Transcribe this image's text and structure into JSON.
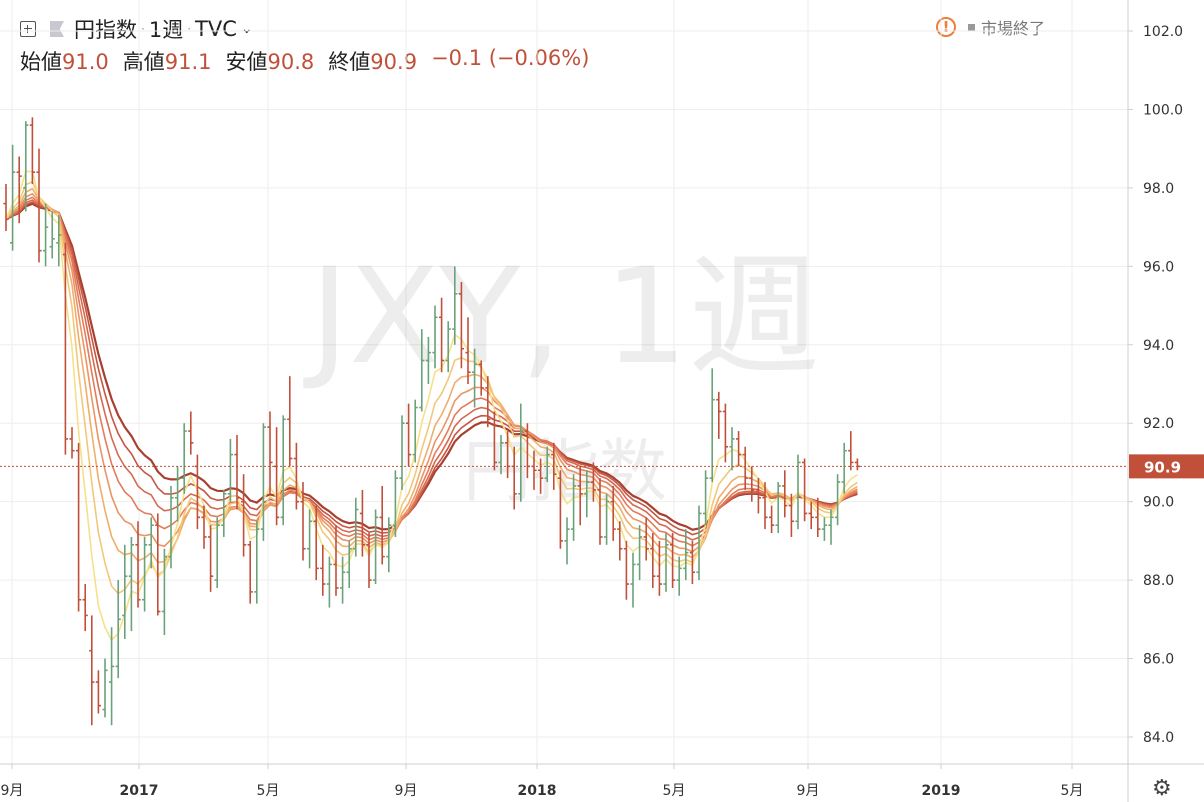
{
  "header": {
    "symbol_name": "円指数",
    "interval": "1週",
    "exchange": "TVC",
    "dot": "·",
    "ohlc": [
      {
        "label": "始値",
        "value": "91.0"
      },
      {
        "label": "高値",
        "value": "91.1"
      },
      {
        "label": "安値",
        "value": "90.8"
      },
      {
        "label": "終値",
        "value": "90.9"
      }
    ],
    "change": "−0.1 (−0.06%)",
    "status": "市場終了",
    "status_icon": "warning-icon"
  },
  "colors": {
    "up": "#6aa27a",
    "down": "#c0503a",
    "price_tag": "#c0503a",
    "grid": "#eeeeee"
  },
  "chart_data": {
    "type": "ohlc",
    "title": "",
    "watermark": [
      "JXY, 1週",
      "円指数"
    ],
    "ylim": [
      83.2,
      102.8
    ],
    "y_ticks": [
      84.0,
      86.0,
      88.0,
      90.0,
      92.0,
      94.0,
      96.0,
      98.0,
      100.0,
      102.0
    ],
    "x_ticks": [
      "9月",
      "2017",
      "5月",
      "9月",
      "2018",
      "5月",
      "9月",
      "2019",
      "5月"
    ],
    "last_price": "90.9",
    "settings_icon": "gear-icon",
    "candles": [
      [
        97.6,
        98.1,
        96.9,
        97.2
      ],
      [
        96.6,
        99.1,
        96.4,
        98.4
      ],
      [
        98.4,
        98.8,
        97.1,
        98.3
      ],
      [
        98.0,
        99.7,
        97.4,
        99.6
      ],
      [
        99.6,
        99.8,
        98.1,
        98.4
      ],
      [
        98.4,
        99.0,
        96.1,
        96.4
      ],
      [
        96.4,
        97.6,
        96.0,
        97.0
      ],
      [
        96.5,
        97.4,
        96.2,
        96.7
      ],
      [
        96.6,
        97.3,
        96.0,
        96.8
      ],
      [
        96.3,
        96.6,
        91.2,
        91.6
      ],
      [
        91.6,
        91.9,
        91.1,
        91.3
      ],
      [
        91.3,
        91.5,
        87.2,
        87.5
      ],
      [
        87.5,
        87.9,
        86.7,
        87.1
      ],
      [
        86.2,
        87.1,
        84.3,
        85.4
      ],
      [
        85.4,
        85.7,
        84.6,
        84.8
      ],
      [
        84.7,
        86.0,
        84.5,
        85.7
      ],
      [
        85.4,
        86.8,
        84.3,
        85.8
      ],
      [
        85.8,
        88.0,
        85.5,
        87.0
      ],
      [
        87.1,
        88.9,
        86.5,
        88.1
      ],
      [
        88.1,
        89.1,
        86.7,
        88.9
      ],
      [
        88.9,
        89.5,
        87.3,
        87.5
      ],
      [
        87.5,
        89.1,
        87.2,
        88.9
      ],
      [
        88.9,
        89.6,
        88.3,
        89.4
      ],
      [
        89.4,
        89.7,
        87.1,
        87.2
      ],
      [
        87.2,
        88.8,
        86.6,
        88.6
      ],
      [
        88.6,
        90.4,
        88.3,
        90.1
      ],
      [
        90.1,
        90.9,
        89.5,
        90.6
      ],
      [
        90.6,
        92.0,
        90.2,
        91.8
      ],
      [
        91.8,
        92.3,
        91.2,
        91.5
      ],
      [
        90.9,
        91.2,
        89.3,
        89.6
      ],
      [
        89.6,
        89.9,
        88.8,
        89.1
      ],
      [
        89.1,
        89.4,
        87.7,
        88.1
      ],
      [
        88.0,
        89.6,
        87.8,
        89.4
      ],
      [
        89.4,
        90.3,
        89.1,
        90.2
      ],
      [
        90.2,
        91.6,
        90.0,
        91.2
      ],
      [
        91.2,
        91.7,
        89.8,
        90.1
      ],
      [
        90.0,
        90.7,
        88.6,
        88.9
      ],
      [
        88.9,
        89.0,
        87.4,
        87.7
      ],
      [
        87.7,
        89.5,
        87.4,
        89.3
      ],
      [
        89.3,
        92.0,
        89.0,
        91.9
      ],
      [
        91.9,
        92.3,
        90.2,
        91.0
      ],
      [
        90.9,
        91.9,
        89.4,
        89.6
      ],
      [
        89.6,
        92.2,
        89.4,
        92.1
      ],
      [
        92.1,
        93.2,
        90.9,
        91.1
      ],
      [
        91.1,
        91.5,
        89.8,
        90.0
      ],
      [
        90.0,
        90.5,
        88.5,
        88.8
      ],
      [
        88.8,
        89.8,
        88.3,
        89.5
      ],
      [
        89.5,
        89.9,
        88.0,
        88.3
      ],
      [
        88.3,
        88.9,
        87.6,
        87.9
      ],
      [
        87.9,
        88.6,
        87.3,
        88.4
      ],
      [
        88.4,
        89.4,
        87.6,
        87.8
      ],
      [
        87.8,
        88.6,
        87.4,
        88.2
      ],
      [
        88.2,
        89.0,
        87.8,
        88.8
      ],
      [
        88.8,
        90.1,
        88.6,
        89.8
      ],
      [
        89.7,
        90.3,
        88.6,
        88.9
      ],
      [
        88.9,
        89.2,
        87.8,
        88.0
      ],
      [
        88.0,
        89.8,
        87.9,
        89.6
      ],
      [
        89.6,
        90.4,
        88.4,
        88.6
      ],
      [
        88.6,
        89.6,
        88.2,
        89.4
      ],
      [
        89.4,
        90.8,
        89.1,
        90.6
      ],
      [
        90.6,
        92.2,
        90.3,
        92.0
      ],
      [
        92.0,
        92.5,
        90.9,
        91.2
      ],
      [
        91.2,
        92.6,
        91.0,
        92.4
      ],
      [
        92.4,
        94.4,
        92.3,
        93.6
      ],
      [
        93.6,
        94.2,
        93.0,
        93.8
      ],
      [
        93.8,
        95.0,
        93.4,
        94.7
      ],
      [
        94.7,
        95.2,
        93.3,
        93.6
      ],
      [
        93.6,
        94.6,
        93.3,
        94.4
      ],
      [
        94.4,
        96.0,
        94.0,
        95.3
      ],
      [
        95.3,
        95.6,
        93.4,
        93.9
      ],
      [
        93.8,
        94.7,
        93.0,
        93.3
      ],
      [
        93.3,
        93.9,
        92.4,
        93.5
      ],
      [
        93.5,
        93.6,
        92.7,
        92.9
      ],
      [
        92.9,
        93.2,
        91.9,
        92.1
      ],
      [
        92.1,
        92.3,
        90.8,
        91.0
      ],
      [
        91.0,
        91.7,
        90.7,
        91.5
      ],
      [
        91.5,
        91.8,
        90.6,
        90.9
      ],
      [
        90.9,
        91.4,
        89.8,
        90.2
      ],
      [
        90.2,
        92.5,
        90.0,
        91.8
      ],
      [
        91.8,
        92.0,
        90.6,
        90.9
      ],
      [
        90.9,
        91.3,
        90.3,
        90.8
      ],
      [
        90.8,
        91.1,
        90.2,
        90.6
      ],
      [
        90.6,
        91.4,
        90.5,
        91.2
      ],
      [
        91.2,
        91.5,
        90.3,
        90.7
      ],
      [
        90.6,
        90.8,
        88.8,
        89.0
      ],
      [
        89.0,
        89.6,
        88.4,
        89.3
      ],
      [
        89.3,
        90.7,
        89.0,
        90.4
      ],
      [
        90.4,
        90.9,
        89.4,
        90.2
      ],
      [
        90.2,
        90.8,
        89.6,
        90.5
      ],
      [
        90.5,
        91.0,
        90.0,
        90.3
      ],
      [
        90.3,
        90.6,
        88.9,
        89.1
      ],
      [
        89.1,
        90.2,
        88.9,
        90.0
      ],
      [
        90.0,
        90.4,
        89.0,
        89.3
      ],
      [
        89.3,
        89.5,
        88.5,
        88.8
      ],
      [
        88.8,
        89.0,
        87.5,
        87.9
      ],
      [
        87.9,
        88.7,
        87.3,
        88.4
      ],
      [
        88.4,
        89.4,
        88.0,
        89.1
      ],
      [
        89.1,
        89.6,
        88.5,
        88.8
      ],
      [
        88.8,
        89.2,
        87.8,
        88.1
      ],
      [
        88.1,
        89.0,
        87.6,
        87.9
      ],
      [
        87.9,
        89.2,
        87.7,
        88.9
      ],
      [
        88.9,
        89.2,
        87.8,
        88.0
      ],
      [
        88.0,
        88.6,
        87.6,
        88.3
      ],
      [
        88.3,
        89.3,
        88.0,
        88.7
      ],
      [
        88.7,
        89.0,
        87.9,
        88.2
      ],
      [
        88.2,
        89.9,
        88.0,
        89.7
      ],
      [
        89.7,
        90.8,
        89.4,
        90.6
      ],
      [
        90.6,
        93.4,
        90.5,
        92.6
      ],
      [
        92.6,
        92.8,
        91.6,
        92.3
      ],
      [
        92.3,
        92.5,
        91.0,
        91.4
      ],
      [
        91.4,
        91.9,
        90.8,
        91.6
      ],
      [
        91.6,
        91.8,
        90.9,
        91.2
      ],
      [
        91.2,
        91.4,
        90.3,
        90.6
      ],
      [
        90.6,
        90.9,
        90.0,
        90.3
      ],
      [
        90.3,
        90.6,
        89.7,
        90.1
      ],
      [
        90.1,
        90.5,
        89.3,
        89.6
      ],
      [
        89.6,
        89.9,
        89.2,
        89.4
      ],
      [
        89.4,
        90.5,
        89.2,
        90.4
      ],
      [
        90.4,
        90.8,
        89.6,
        89.9
      ],
      [
        89.9,
        90.2,
        89.1,
        89.5
      ],
      [
        89.5,
        91.2,
        89.3,
        91.0
      ],
      [
        91.0,
        91.1,
        89.5,
        89.7
      ],
      [
        89.7,
        90.0,
        89.3,
        89.6
      ],
      [
        89.6,
        90.1,
        89.1,
        89.3
      ],
      [
        89.3,
        89.6,
        89.0,
        89.4
      ],
      [
        89.4,
        89.8,
        88.9,
        89.6
      ],
      [
        89.6,
        90.7,
        89.4,
        90.5
      ],
      [
        90.5,
        91.5,
        90.2,
        91.3
      ],
      [
        91.3,
        91.8,
        90.8,
        91.0
      ],
      [
        91.0,
        91.1,
        90.8,
        90.9
      ]
    ],
    "mas": [
      {
        "period": 5,
        "color": "#f6e08a"
      },
      {
        "period": 8,
        "color": "#f3c77a"
      },
      {
        "period": 11,
        "color": "#f0ad6c"
      },
      {
        "period": 14,
        "color": "#ec9463"
      },
      {
        "period": 17,
        "color": "#e27c5b"
      },
      {
        "period": 20,
        "color": "#d66a50"
      },
      {
        "period": 23,
        "color": "#c55644"
      },
      {
        "period": 26,
        "color": "#a8402f"
      }
    ]
  }
}
